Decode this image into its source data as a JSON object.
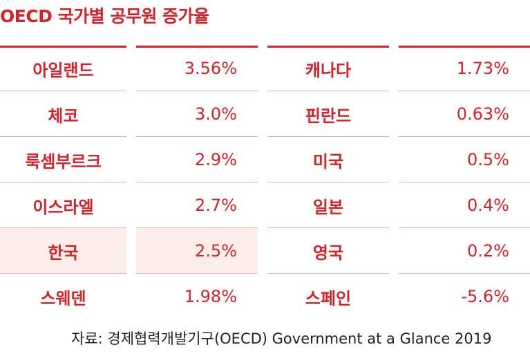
{
  "title": "OECD 국가별 공무원 증가율",
  "source": "자료: 경제협력개발기구(OECD) Government at a Glance 2019",
  "colors": {
    "accent": "#d2232a",
    "highlight_bg": "#fdeeea",
    "divider": "#e6b3b3"
  },
  "chart_data": {
    "type": "table",
    "title": "OECD 국가별 공무원 증가율",
    "highlight": "한국",
    "left": [
      {
        "country": "아일랜드",
        "value": "3.56%"
      },
      {
        "country": "체코",
        "value": "3.0%"
      },
      {
        "country": "룩셈부르크",
        "value": "2.9%"
      },
      {
        "country": "이스라엘",
        "value": "2.7%"
      },
      {
        "country": "한국",
        "value": "2.5%"
      },
      {
        "country": "스웨덴",
        "value": "1.98%"
      }
    ],
    "right": [
      {
        "country": "캐나다",
        "value": "1.73%"
      },
      {
        "country": "핀란드",
        "value": "0.63%"
      },
      {
        "country": "미국",
        "value": "0.5%"
      },
      {
        "country": "일본",
        "value": "0.4%"
      },
      {
        "country": "영국",
        "value": "0.2%"
      },
      {
        "country": "스페인",
        "value": "-5.6%"
      }
    ]
  }
}
